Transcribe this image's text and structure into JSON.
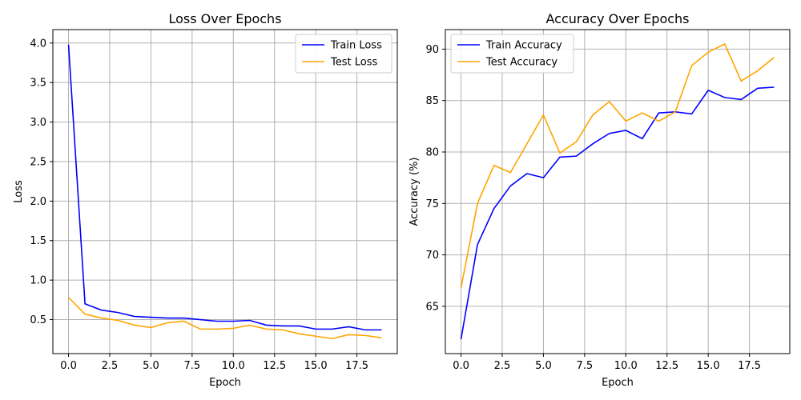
{
  "chart_data": [
    {
      "type": "line",
      "title": "Loss Over Epochs",
      "xlabel": "Epoch",
      "ylabel": "Loss",
      "xlim": [
        -0.95,
        19.95
      ],
      "ylim": [
        0.07,
        4.17
      ],
      "xticks": [
        "0.0",
        "2.5",
        "5.0",
        "7.5",
        "10.0",
        "12.5",
        "15.0",
        "17.5"
      ],
      "yticks": [
        "0.5",
        "1.0",
        "1.5",
        "2.0",
        "2.5",
        "3.0",
        "3.5",
        "4.0"
      ],
      "grid": true,
      "legend_position": "upper-right",
      "x": [
        0,
        1,
        2,
        3,
        4,
        5,
        6,
        7,
        8,
        9,
        10,
        11,
        12,
        13,
        14,
        15,
        16,
        17,
        18,
        19
      ],
      "series": [
        {
          "name": "Train Loss",
          "color": "#0000ff",
          "values": [
            3.98,
            0.7,
            0.62,
            0.59,
            0.54,
            0.53,
            0.52,
            0.52,
            0.5,
            0.48,
            0.48,
            0.49,
            0.43,
            0.42,
            0.42,
            0.38,
            0.38,
            0.41,
            0.37,
            0.37
          ]
        },
        {
          "name": "Test Loss",
          "color": "#ffa500",
          "values": [
            0.78,
            0.57,
            0.52,
            0.49,
            0.43,
            0.4,
            0.46,
            0.48,
            0.38,
            0.38,
            0.39,
            0.43,
            0.38,
            0.37,
            0.32,
            0.29,
            0.26,
            0.31,
            0.3,
            0.27
          ]
        }
      ]
    },
    {
      "type": "line",
      "title": "Accuracy Over Epochs",
      "xlabel": "Epoch",
      "ylabel": "Accuracy (%)",
      "xlim": [
        -0.95,
        19.95
      ],
      "ylim": [
        60.4,
        91.9
      ],
      "xticks": [
        "0.0",
        "2.5",
        "5.0",
        "7.5",
        "10.0",
        "12.5",
        "15.0",
        "17.5"
      ],
      "yticks": [
        "65",
        "70",
        "75",
        "80",
        "85",
        "90"
      ],
      "grid": true,
      "legend_position": "upper-left",
      "x": [
        0,
        1,
        2,
        3,
        4,
        5,
        6,
        7,
        8,
        9,
        10,
        11,
        12,
        13,
        14,
        15,
        16,
        17,
        18,
        19
      ],
      "series": [
        {
          "name": "Train Accuracy",
          "color": "#0000ff",
          "values": [
            61.8,
            71.0,
            74.5,
            76.7,
            77.9,
            77.5,
            79.5,
            79.6,
            80.8,
            81.8,
            82.1,
            81.3,
            83.8,
            83.9,
            83.7,
            86.0,
            85.3,
            85.1,
            86.2,
            86.3
          ]
        },
        {
          "name": "Test Accuracy",
          "color": "#ffa500",
          "values": [
            66.8,
            75.0,
            78.7,
            78.0,
            80.8,
            83.6,
            79.9,
            81.0,
            83.6,
            84.9,
            83.0,
            83.8,
            83.0,
            83.9,
            88.4,
            89.7,
            90.5,
            86.9,
            87.9,
            89.2
          ]
        }
      ]
    }
  ]
}
